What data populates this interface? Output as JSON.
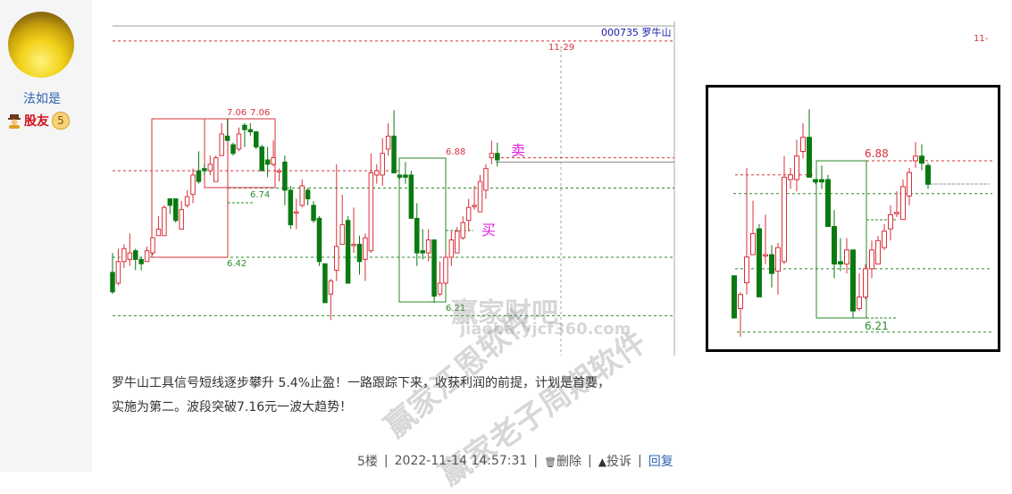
{
  "user": {
    "name": "法如是",
    "rank": "股友",
    "level": "5",
    "avatar_icon": "avatar-image",
    "rank_icon": "user-hat-icon"
  },
  "chart": {
    "stock_label": "000735 罗牛山",
    "date_marker": "11-29",
    "right_cut_label": "11-",
    "labels": {
      "high_a": "7.06",
      "high_b": "7.06",
      "support_a": "6.74",
      "support_b": "6.42",
      "resist": "6.88",
      "low": "6.21"
    },
    "sell_label": "卖",
    "buy_label": "买",
    "colors": {
      "up": "#d9303a",
      "down": "#0a7a10",
      "green_line": "#2a8a2a",
      "sell_buy": "#e020e0",
      "stock_label": "#1a1aa8"
    },
    "levels": [
      7.42,
      6.88,
      6.82,
      6.74,
      6.42,
      6.15
    ],
    "candles": [
      [
        6.35,
        6.44,
        6.25,
        6.26
      ],
      [
        6.3,
        6.46,
        6.29,
        6.4
      ],
      [
        6.4,
        6.48,
        6.37,
        6.46
      ],
      [
        6.41,
        6.53,
        6.38,
        6.44
      ],
      [
        6.45,
        6.46,
        6.36,
        6.41
      ],
      [
        6.41,
        6.42,
        6.36,
        6.39
      ],
      [
        6.4,
        6.47,
        6.4,
        6.45
      ],
      [
        6.44,
        6.51,
        6.43,
        6.51
      ],
      [
        6.52,
        6.61,
        6.52,
        6.55
      ],
      [
        6.52,
        6.66,
        6.52,
        6.65
      ],
      [
        6.69,
        6.69,
        6.62,
        6.66
      ],
      [
        6.69,
        6.69,
        6.58,
        6.59
      ],
      [
        6.55,
        6.68,
        6.55,
        6.64
      ],
      [
        6.66,
        6.73,
        6.65,
        6.7
      ],
      [
        6.71,
        6.83,
        6.67,
        6.8
      ],
      [
        6.82,
        6.91,
        6.76,
        6.77
      ],
      [
        6.83,
        6.85,
        6.8,
        6.82
      ],
      [
        6.82,
        6.89,
        6.8,
        6.85
      ],
      [
        6.77,
        6.89,
        6.77,
        6.88
      ],
      [
        6.89,
        7.04,
        6.89,
        6.99
      ],
      [
        6.98,
        7.06,
        6.96,
        6.96
      ],
      [
        6.94,
        6.95,
        6.89,
        6.9
      ],
      [
        6.92,
        7.02,
        6.91,
        6.99
      ],
      [
        7.03,
        7.04,
        6.93,
        7.01
      ],
      [
        7.01,
        7.04,
        6.98,
        7.0
      ],
      [
        7.0,
        7.0,
        6.92,
        6.93
      ],
      [
        6.93,
        6.94,
        6.82,
        6.82
      ],
      [
        6.87,
        6.93,
        6.79,
        6.85
      ],
      [
        6.85,
        6.96,
        6.84,
        6.88
      ],
      [
        6.82,
        6.83,
        6.77,
        6.82
      ],
      [
        6.86,
        6.89,
        6.66,
        6.73
      ],
      [
        6.73,
        6.75,
        6.55,
        6.57
      ],
      [
        6.63,
        6.69,
        6.55,
        6.63
      ],
      [
        6.66,
        6.78,
        6.65,
        6.75
      ],
      [
        6.73,
        6.74,
        6.66,
        6.69
      ],
      [
        6.66,
        6.68,
        6.58,
        6.59
      ],
      [
        6.6,
        6.61,
        6.38,
        6.4
      ],
      [
        6.39,
        6.39,
        6.21,
        6.21
      ],
      [
        6.25,
        6.32,
        6.13,
        6.31
      ],
      [
        6.36,
        6.85,
        6.31,
        6.47
      ],
      [
        6.48,
        6.71,
        6.48,
        6.57
      ],
      [
        6.59,
        6.61,
        6.3,
        6.3
      ],
      [
        6.48,
        6.65,
        6.44,
        6.48
      ],
      [
        6.48,
        6.52,
        6.34,
        6.4
      ],
      [
        6.41,
        6.53,
        6.31,
        6.51
      ],
      [
        6.45,
        6.9,
        6.44,
        6.81
      ],
      [
        6.8,
        6.85,
        6.76,
        6.82
      ],
      [
        6.8,
        6.97,
        6.75,
        6.9
      ],
      [
        6.92,
        7.04,
        6.89,
        6.98
      ],
      [
        6.98,
        7.1,
        6.81,
        6.81
      ],
      [
        6.8,
        6.8,
        6.78,
        6.79
      ],
      [
        6.8,
        6.86,
        6.76,
        6.79
      ],
      [
        6.8,
        6.82,
        6.6,
        6.6
      ],
      [
        6.6,
        6.67,
        6.38,
        6.44
      ],
      [
        6.45,
        6.55,
        6.41,
        6.44
      ],
      [
        6.44,
        6.55,
        6.4,
        6.5
      ],
      [
        6.5,
        6.5,
        6.21,
        6.24
      ],
      [
        6.25,
        6.4,
        6.24,
        6.3
      ],
      [
        6.3,
        6.44,
        6.29,
        6.42
      ],
      [
        6.42,
        6.54,
        6.38,
        6.5
      ],
      [
        6.44,
        6.56,
        6.44,
        6.54
      ],
      [
        6.51,
        6.61,
        6.5,
        6.58
      ],
      [
        6.59,
        6.69,
        6.54,
        6.65
      ],
      [
        6.66,
        6.75,
        6.64,
        6.66
      ],
      [
        6.63,
        6.8,
        6.63,
        6.77
      ],
      [
        6.73,
        6.85,
        6.69,
        6.83
      ],
      [
        6.88,
        6.96,
        6.85,
        6.9
      ],
      [
        6.9,
        6.95,
        6.84,
        6.87
      ]
    ],
    "inset_extra_candle": [
      6.86,
      6.87,
      6.76,
      6.78
    ]
  },
  "post": {
    "line1": "罗牛山工具信号短线逐步攀升 5.4%止盈！一路跟踪下来，收获利润的前提，计划是首要，",
    "line2": "实施为第二。波段突破7.16元一波大趋势！"
  },
  "meta": {
    "floor": "5楼",
    "timestamp": "2022-11-14 14:57:31",
    "delete": "删除",
    "report": "投诉",
    "reply": "回复",
    "sep": "|"
  },
  "watermarks": [
    "赢家江恩软件",
    "赢家老子周期软件",
    "赢家财吧",
    "jiaoba.yjcf360.com"
  ]
}
